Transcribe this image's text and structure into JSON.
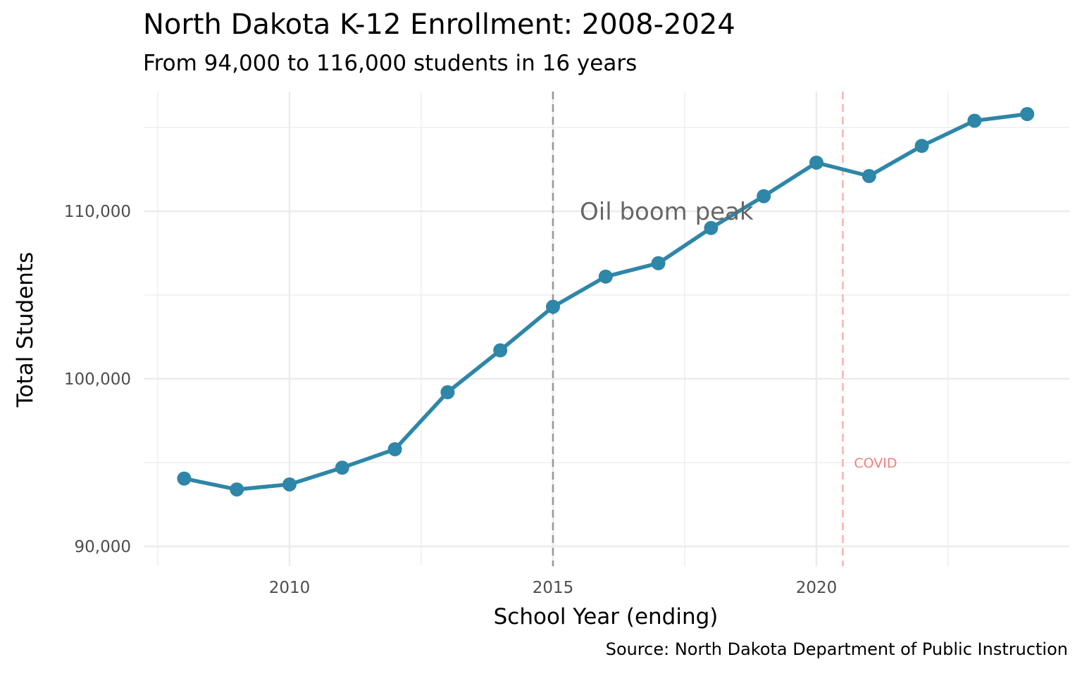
{
  "chart_data": {
    "type": "line",
    "title": "North Dakota K-12 Enrollment: 2008-2024",
    "subtitle": "From 94,000 to 116,000 students in 16 years",
    "xlabel": "School Year (ending)",
    "ylabel": "Total Students",
    "caption": "Source: North Dakota Department of Public Instruction",
    "xlim": [
      2007.5,
      2024.5
    ],
    "ylim": [
      89500,
      117000
    ],
    "x_ticks": [
      2010,
      2015,
      2020
    ],
    "y_ticks": [
      90000,
      100000,
      110000
    ],
    "x_tick_labels": [
      "2010",
      "2015",
      "2020"
    ],
    "y_tick_labels": [
      "90,000",
      "100,000",
      "110,000"
    ],
    "grid": true,
    "series": [
      {
        "x": [
          2008,
          2009,
          2010,
          2011,
          2012,
          2013,
          2014,
          2015,
          2016,
          2017,
          2018,
          2019,
          2020,
          2021,
          2022,
          2023,
          2024
        ],
        "values": [
          94050,
          93400,
          93700,
          94700,
          95800,
          99200,
          101700,
          104300,
          106100,
          106900,
          109000,
          110900,
          112900,
          112100,
          113900,
          115400,
          115800
        ],
        "color": "#2e86a8"
      }
    ],
    "annotations": [
      {
        "text": "Oil boom peak",
        "x": 2015,
        "y": 110000,
        "line_color": "#999999",
        "text_color": "#666666"
      },
      {
        "text": "COVID",
        "x": 2020.5,
        "y": 95000,
        "line_color": "#ffb3b3",
        "text_color": "#f08080"
      }
    ]
  }
}
